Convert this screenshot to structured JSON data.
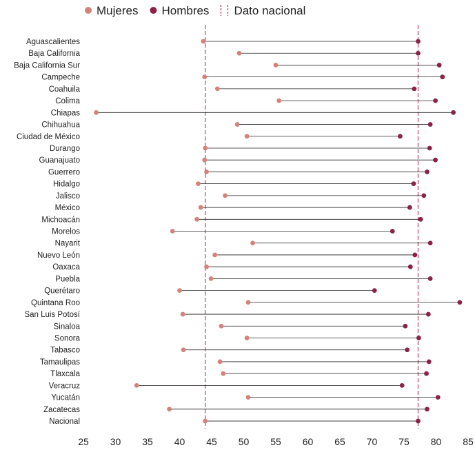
{
  "chart_data": {
    "type": "dumbbell",
    "legend": {
      "position": "top",
      "entries": [
        {
          "name": "Mujeres",
          "color": "#d4837a",
          "marker": "dot"
        },
        {
          "name": "Hombres",
          "color": "#8c2248",
          "marker": "dot"
        },
        {
          "name": "Dato nacional",
          "color": "#b7405f",
          "marker": "dashed-line"
        }
      ]
    },
    "x_axis": {
      "ticks": [
        25,
        30,
        35,
        40,
        45,
        50,
        55,
        60,
        65,
        70,
        75,
        80,
        85
      ],
      "range": [
        25,
        85
      ]
    },
    "national": {
      "mujeres": 44.0,
      "hombres": 77.2
    },
    "categories": [
      "Aguascalientes",
      "Baja California",
      "Baja California Sur",
      "Campeche",
      "Coahuila",
      "Colima",
      "Chiapas",
      "Chihuahua",
      "Ciudad de México",
      "Durango",
      "Guanajuato",
      "Guerrero",
      "Hidalgo",
      "Jalisco",
      "México",
      "Michoacán",
      "Morelos",
      "Nayarit",
      "Nuevo León",
      "Oaxaca",
      "Puebla",
      "Querétaro",
      "Quintana Roo",
      "San Luis Potosí",
      "Sinaloa",
      "Sonora",
      "Tabasco",
      "Tamaulipas",
      "Tlaxcala",
      "Veracruz",
      "Yucatán",
      "Zacatecas",
      "Nacional"
    ],
    "series": [
      {
        "name": "Mujeres",
        "values": [
          43.7,
          49.3,
          55.0,
          43.9,
          45.9,
          55.5,
          27.0,
          49.0,
          50.5,
          44.0,
          43.9,
          44.2,
          42.9,
          47.1,
          43.3,
          42.7,
          38.9,
          51.4,
          45.5,
          44.2,
          44.9,
          40.0,
          50.7,
          40.5,
          46.5,
          50.5,
          40.6,
          46.3,
          46.8,
          33.3,
          50.7,
          38.4,
          44.0
        ]
      },
      {
        "name": "Hombres",
        "values": [
          77.2,
          77.2,
          80.5,
          81.0,
          76.6,
          79.9,
          82.7,
          79.1,
          74.4,
          79.0,
          79.9,
          78.6,
          76.5,
          78.1,
          75.9,
          77.6,
          73.2,
          79.1,
          76.7,
          76.0,
          79.1,
          70.4,
          83.7,
          78.8,
          75.2,
          77.3,
          75.5,
          78.9,
          78.5,
          74.7,
          80.3,
          78.6,
          77.2
        ]
      }
    ],
    "colors": {
      "mujeres": "#d4837a",
      "hombres": "#8c2248",
      "national_line": "#b7405f",
      "connector": "#222222"
    }
  }
}
